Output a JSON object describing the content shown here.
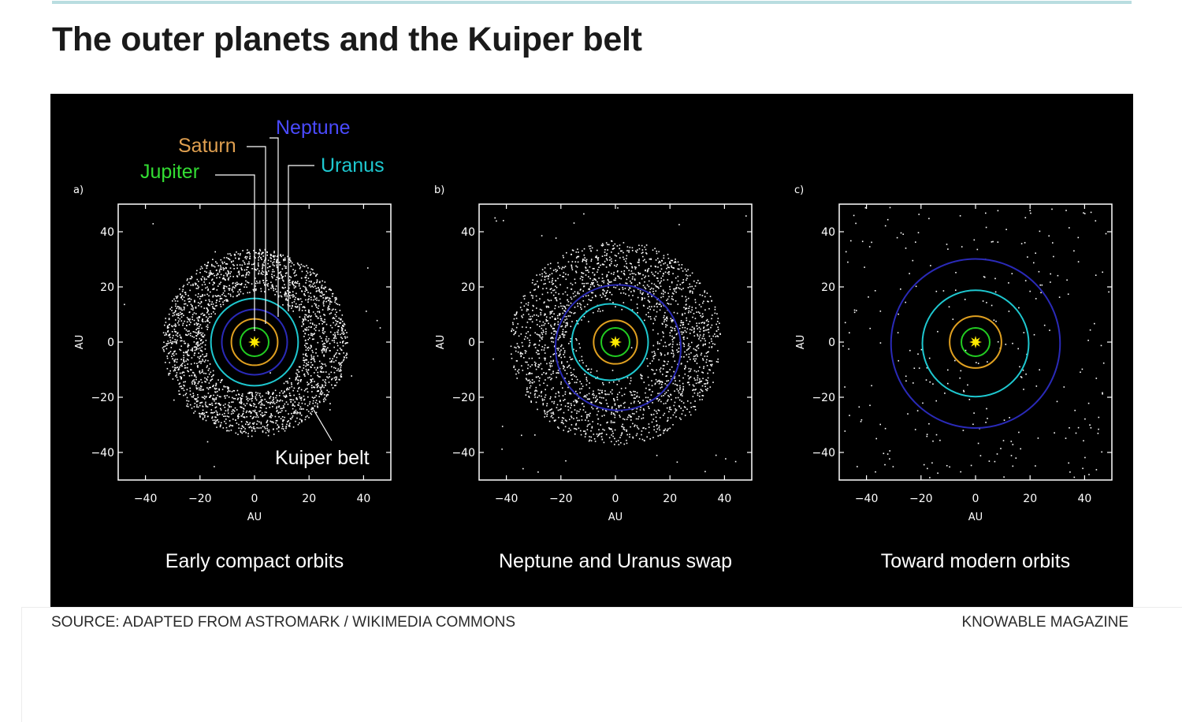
{
  "title": "The outer planets and the Kuiper belt",
  "footer": {
    "source": "SOURCE: ADAPTED FROM ASTROMARK / WIKIMEDIA COMMONS",
    "credit": "KNOWABLE MAGAZINE"
  },
  "colors": {
    "background": "#000000",
    "sun": "#ffea00",
    "jupiter": "#22cc22",
    "saturn": "#e0a020",
    "uranus": "#1ec8d0",
    "neptune": "#2a2ab8"
  },
  "callouts": {
    "jupiter": "Jupiter",
    "saturn": "Saturn",
    "neptune": "Neptune",
    "uranus": "Uranus",
    "kuiper_belt": "Kuiper belt"
  },
  "chart_data": [
    {
      "type": "scatter",
      "panel_label": "a)",
      "caption": "Early compact orbits",
      "xlabel": "AU",
      "ylabel": "AU",
      "xlim": [
        -50,
        50
      ],
      "ylim": [
        -50,
        50
      ],
      "ticks": [
        "−40",
        "−20",
        "0",
        "20",
        "40"
      ],
      "tick_values": [
        -40,
        -20,
        0,
        20,
        40
      ],
      "orbits": [
        {
          "planet": "jupiter",
          "radius_au": 5.2,
          "center": [
            0,
            0
          ]
        },
        {
          "planet": "saturn",
          "radius_au": 8.5,
          "center": [
            0,
            0
          ]
        },
        {
          "planet": "neptune",
          "radius_au": 12.0,
          "center": [
            0,
            0
          ]
        },
        {
          "planet": "uranus",
          "radius_au": 16.0,
          "center": [
            0,
            0
          ]
        }
      ],
      "belt": {
        "inner_au": 18,
        "outer_au": 34,
        "sparse_count": 24
      }
    },
    {
      "type": "scatter",
      "panel_label": "b)",
      "caption": "Neptune and Uranus swap",
      "xlabel": "AU",
      "ylabel": "AU",
      "xlim": [
        -50,
        50
      ],
      "ylim": [
        -50,
        50
      ],
      "ticks": [
        "−40",
        "−20",
        "0",
        "20",
        "40"
      ],
      "tick_values": [
        -40,
        -20,
        0,
        20,
        40
      ],
      "orbits": [
        {
          "planet": "jupiter",
          "radius_au": 5.2,
          "center": [
            0,
            0
          ]
        },
        {
          "planet": "saturn",
          "radius_au": 8.0,
          "center": [
            0,
            0
          ]
        },
        {
          "planet": "uranus",
          "radius_au": 14.0,
          "center": [
            -2,
            0
          ]
        },
        {
          "planet": "neptune",
          "radius_au": 23.0,
          "center": [
            1,
            -2
          ]
        }
      ],
      "belt": {
        "inner_au": 12,
        "outer_au": 37,
        "sparse_count": 60
      }
    },
    {
      "type": "scatter",
      "panel_label": "c)",
      "caption": "Toward modern orbits",
      "xlabel": "AU",
      "ylabel": "AU",
      "xlim": [
        -50,
        50
      ],
      "ylim": [
        -50,
        50
      ],
      "ticks": [
        "−40",
        "−20",
        "0",
        "20",
        "40"
      ],
      "tick_values": [
        -40,
        -20,
        0,
        20,
        40
      ],
      "orbits": [
        {
          "planet": "jupiter",
          "radius_au": 5.2,
          "center": [
            0,
            0
          ]
        },
        {
          "planet": "saturn",
          "radius_au": 9.5,
          "center": [
            0,
            0
          ]
        },
        {
          "planet": "uranus",
          "radius_au": 19.5,
          "center": [
            0,
            -0.5
          ]
        },
        {
          "planet": "neptune",
          "radius_au": 31.0,
          "center": [
            0,
            -0.5
          ]
        }
      ],
      "belt": {
        "inner_au": 0,
        "outer_au": 0,
        "sparse_count": 260
      }
    }
  ]
}
